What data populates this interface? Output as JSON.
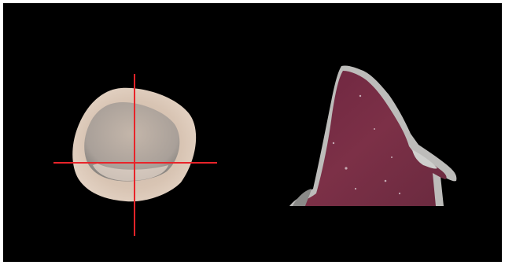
{
  "figure": {
    "background": "#000000",
    "border_color": "#ffffff",
    "crosshair_color": "#e8242a",
    "left_specimen": {
      "description_icon": "tooth-cross-section-icon",
      "outer_color": "#d8c3b1",
      "inner_color": "#b7aa9e",
      "shadow_color": "#8f8a86"
    },
    "right_specimen": {
      "description_icon": "stained-section-icon",
      "fill_color": "#7a2d45",
      "edge_color": "#c8c8c6"
    }
  }
}
